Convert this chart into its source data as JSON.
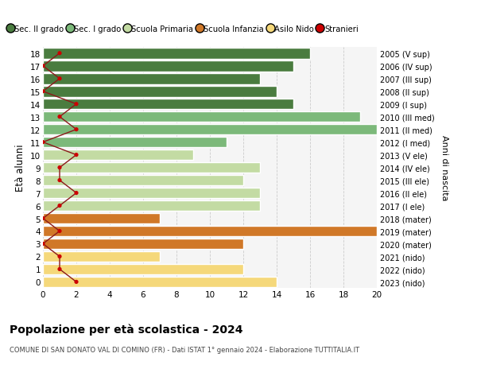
{
  "ages": [
    18,
    17,
    16,
    15,
    14,
    13,
    12,
    11,
    10,
    9,
    8,
    7,
    6,
    5,
    4,
    3,
    2,
    1,
    0
  ],
  "right_labels": [
    "2005 (V sup)",
    "2006 (IV sup)",
    "2007 (III sup)",
    "2008 (II sup)",
    "2009 (I sup)",
    "2010 (III med)",
    "2011 (II med)",
    "2012 (I med)",
    "2013 (V ele)",
    "2014 (IV ele)",
    "2015 (III ele)",
    "2016 (II ele)",
    "2017 (I ele)",
    "2018 (mater)",
    "2019 (mater)",
    "2020 (mater)",
    "2021 (nido)",
    "2022 (nido)",
    "2023 (nido)"
  ],
  "bar_values": [
    16,
    15,
    13,
    14,
    15,
    19,
    20,
    11,
    9,
    13,
    12,
    13,
    13,
    7,
    20,
    12,
    7,
    12,
    14
  ],
  "bar_colors": [
    "#4a7c3f",
    "#4a7c3f",
    "#4a7c3f",
    "#4a7c3f",
    "#4a7c3f",
    "#7cb97a",
    "#7cb97a",
    "#7cb97a",
    "#c3dba3",
    "#c3dba3",
    "#c3dba3",
    "#c3dba3",
    "#c3dba3",
    "#d07828",
    "#d07828",
    "#d07828",
    "#f5d87a",
    "#f5d87a",
    "#f5d87a"
  ],
  "stranieri_values": [
    1,
    0,
    1,
    0,
    2,
    1,
    2,
    0,
    2,
    1,
    1,
    2,
    1,
    0,
    1,
    0,
    1,
    1,
    2
  ],
  "legend_labels": [
    "Sec. II grado",
    "Sec. I grado",
    "Scuola Primaria",
    "Scuola Infanzia",
    "Asilo Nido",
    "Stranieri"
  ],
  "legend_colors": [
    "#4a7c3f",
    "#7cb97a",
    "#c3dba3",
    "#d07828",
    "#f5d87a",
    "#cc0000"
  ],
  "ylabel": "Età alunni",
  "right_ylabel": "Anni di nascita",
  "title": "Popolazione per età scolastica - 2024",
  "subtitle": "COMUNE DI SAN DONATO VAL DI COMINO (FR) - Dati ISTAT 1° gennaio 2024 - Elaborazione TUTTITALIA.IT",
  "xlim": [
    0,
    20
  ],
  "xticks": [
    0,
    2,
    4,
    6,
    8,
    10,
    12,
    14,
    16,
    18,
    20
  ],
  "bg_color": "#ffffff",
  "plot_bg_color": "#f5f5f5"
}
